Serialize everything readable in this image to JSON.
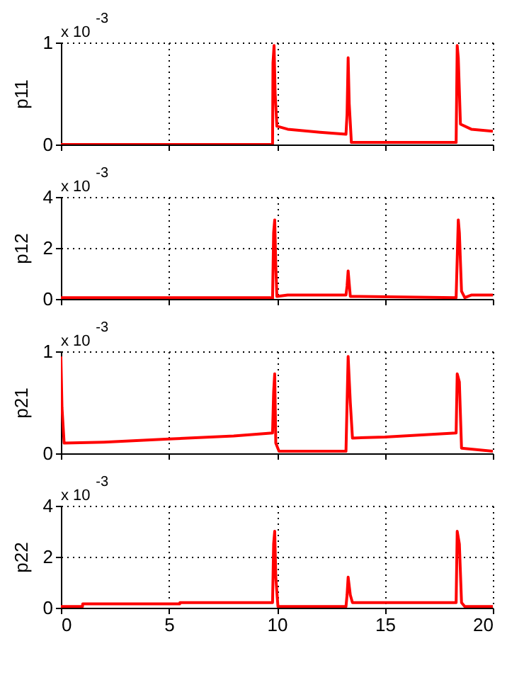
{
  "chart_data": [
    {
      "type": "line",
      "ylabel": "p11",
      "annotations": [
        "x 10$^{-3}$"
      ],
      "grid": true,
      "tick_labels": "y",
      "xlim": [
        0,
        20
      ],
      "xticks": [
        0,
        5,
        10,
        15,
        20
      ],
      "ylim": [
        0,
        1
      ],
      "yticks": [
        0,
        1
      ],
      "x": [
        0,
        9.8,
        9.82,
        9.87,
        9.92,
        10,
        10.5,
        12,
        13.2,
        13.25,
        13.3,
        13.35,
        13.45,
        18.3,
        18.35,
        18.4,
        18.5,
        19,
        20
      ],
      "series": [
        {
          "color": "#ff0000",
          "values": [
            0,
            0,
            0.8,
            0.97,
            0.5,
            0.18,
            0.15,
            0.12,
            0.1,
            0.3,
            0.85,
            0.4,
            0.02,
            0.02,
            0.97,
            0.85,
            0.2,
            0.15,
            0.13
          ]
        }
      ]
    },
    {
      "type": "line",
      "ylabel": "p12",
      "annotations": [
        "x 10$^{-3}$"
      ],
      "grid": true,
      "tick_labels": "y",
      "xlim": [
        0,
        20
      ],
      "xticks": [
        0,
        5,
        10,
        15,
        20
      ],
      "ylim": [
        0,
        4
      ],
      "yticks": [
        0,
        2,
        4
      ],
      "x": [
        0,
        9.7,
        9.8,
        9.85,
        9.9,
        9.95,
        10,
        10.5,
        13.2,
        13.25,
        13.3,
        13.4,
        18.3,
        18.4,
        18.45,
        18.55,
        18.7,
        19,
        20
      ],
      "series": [
        {
          "color": "#ff0000",
          "values": [
            0.05,
            0.05,
            0,
            2.6,
            3.1,
            1.3,
            0.1,
            0.15,
            0.15,
            0.5,
            1.1,
            0.1,
            0.05,
            3.1,
            2.6,
            0.3,
            0.05,
            0.15,
            0.15
          ]
        }
      ]
    },
    {
      "type": "line",
      "ylabel": "p21",
      "annotations": [
        "x 10$^{-3}$"
      ],
      "grid": true,
      "tick_labels": "y",
      "xlim": [
        0,
        20
      ],
      "xticks": [
        0,
        5,
        10,
        15,
        20
      ],
      "ylim": [
        0,
        1
      ],
      "yticks": [
        0,
        1
      ],
      "x": [
        0,
        0.05,
        0.15,
        2,
        5,
        8,
        9.8,
        9.85,
        9.9,
        9.95,
        10.1,
        13.2,
        13.3,
        13.4,
        13.5,
        15,
        18.3,
        18.35,
        18.45,
        18.55,
        20
      ],
      "series": [
        {
          "color": "#ff0000",
          "values": [
            0.95,
            0.45,
            0.1,
            0.11,
            0.14,
            0.17,
            0.2,
            0.6,
            0.78,
            0.1,
            0.02,
            0.02,
            0.95,
            0.5,
            0.15,
            0.16,
            0.2,
            0.78,
            0.7,
            0.05,
            0.02
          ]
        }
      ]
    },
    {
      "type": "line",
      "ylabel": "p22",
      "annotations": [
        "x 10$^{-3}$"
      ],
      "grid": true,
      "xlim": [
        0,
        20
      ],
      "xticks": [
        0,
        5,
        10,
        15,
        20
      ],
      "ylim": [
        0,
        4
      ],
      "yticks": [
        0,
        2,
        4
      ],
      "x": [
        0,
        1,
        1.01,
        5.5,
        5.51,
        9.8,
        9.85,
        9.9,
        9.95,
        10.05,
        13.2,
        13.25,
        13.3,
        13.4,
        13.5,
        18.3,
        18.35,
        18.45,
        18.55,
        18.7,
        20
      ],
      "series": [
        {
          "color": "#ff0000",
          "values": [
            0.05,
            0.05,
            0.15,
            0.15,
            0.2,
            0.2,
            2.5,
            3,
            1.2,
            0.05,
            0.05,
            0.5,
            1.2,
            0.5,
            0.2,
            0.2,
            3,
            2.5,
            0.2,
            0.05,
            0.05
          ]
        }
      ]
    }
  ]
}
